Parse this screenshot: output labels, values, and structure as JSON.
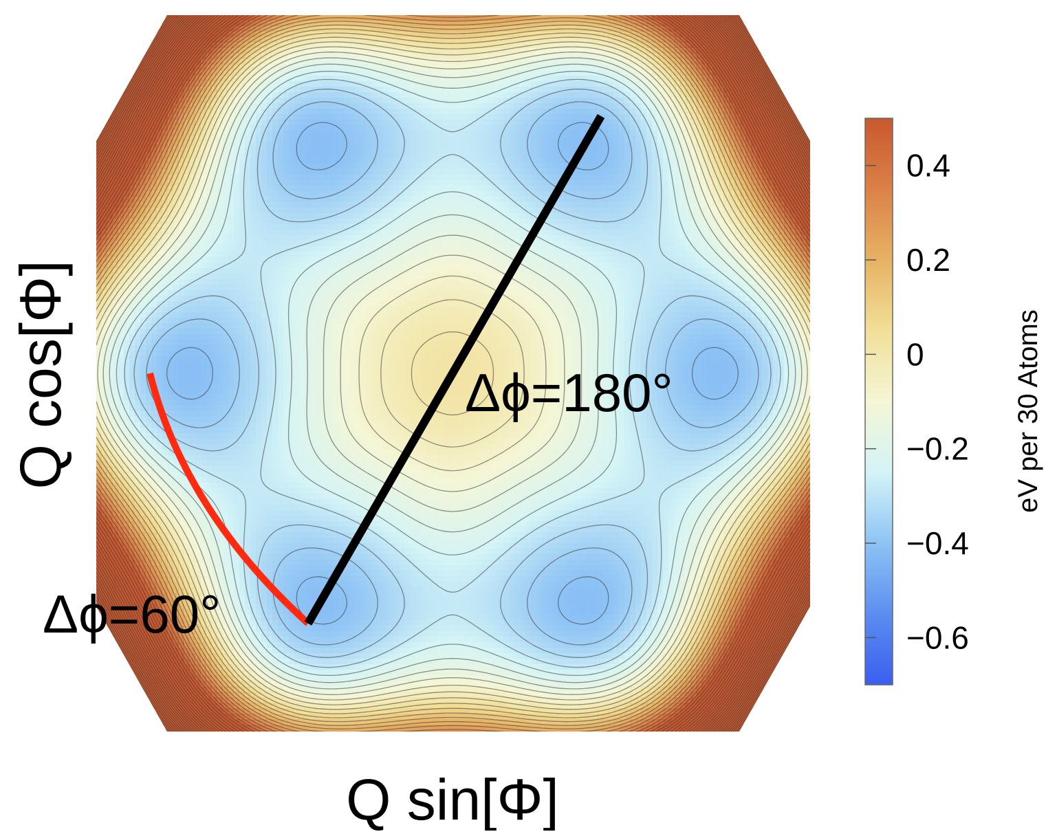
{
  "chart_data": {
    "type": "contour",
    "xlabel": "Q sin[Φ]",
    "ylabel": "Q cos[Φ]",
    "colorbar": {
      "label": "eV per 30 Atoms",
      "range": [
        -0.7,
        0.5
      ],
      "ticks": [
        0.4,
        0.2,
        0,
        -0.2,
        -0.4,
        -0.6
      ],
      "tick_labels": [
        "0.4",
        "0.2",
        "0",
        "−0.2",
        "−0.4",
        "−0.6"
      ],
      "colors": [
        "#3a5ef0",
        "#5b8ef0",
        "#8ec3f5",
        "#d4f4f6",
        "#f4f6d6",
        "#f2df98",
        "#e7b264",
        "#db8148",
        "#c9582e"
      ]
    },
    "surface": {
      "description_values": {
        "center_energy": 0.02,
        "minimum_energy": -0.66,
        "minima_count": 6,
        "minima_angles_deg": [
          30,
          90,
          150,
          210,
          270,
          330
        ],
        "contour_spacing": 0.04
      }
    },
    "paths": [
      {
        "label": "Δϕ=60°",
        "color": "#ff2a10",
        "from_angle_deg": 270,
        "to_angle_deg": 210,
        "kind": "arc"
      },
      {
        "label": "Δϕ=180°",
        "color": "#000000",
        "from_angle_deg": 210,
        "to_angle_deg": 30,
        "kind": "straight"
      }
    ],
    "grid": false
  }
}
